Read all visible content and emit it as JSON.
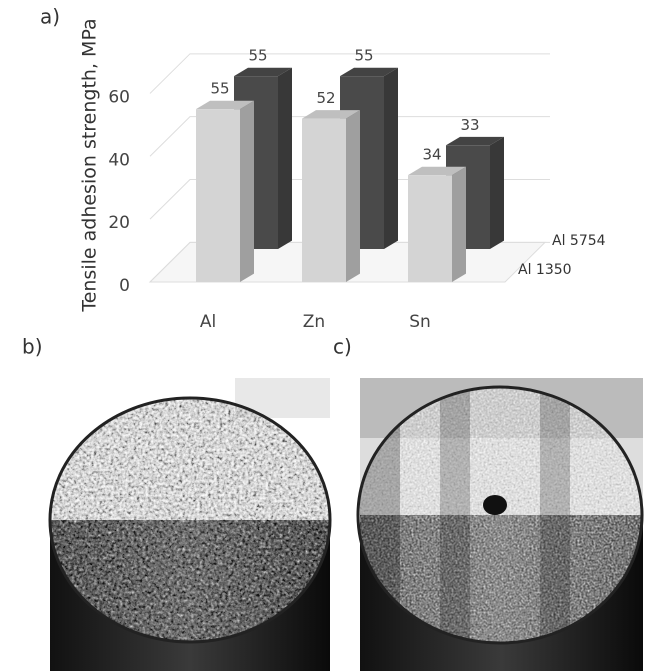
{
  "panel_labels": [
    "a)",
    "b)",
    "c)"
  ],
  "chart_data": {
    "type": "bar",
    "y_label": "Tensile adhesion strength, MPa",
    "categories": [
      "Al",
      "Zn",
      "Sn"
    ],
    "series": [
      {
        "name": "Al 1350",
        "color": "#d4d4d4",
        "values": [
          55,
          52,
          34
        ]
      },
      {
        "name": "Al 5754",
        "color": "#4a4a4a",
        "values": [
          55,
          55,
          33
        ]
      }
    ],
    "ylim": [
      0,
      70
    ],
    "yticks": [
      0,
      20,
      40,
      60
    ],
    "grid": true
  }
}
